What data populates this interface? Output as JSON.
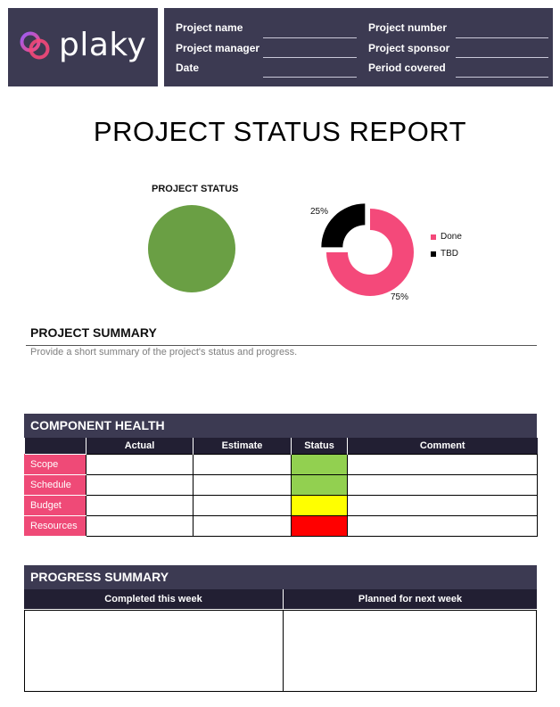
{
  "header": {
    "logo_text": "plaky",
    "fields_left": [
      "Project name",
      "Project manager",
      "Date"
    ],
    "fields_right": [
      "Project number",
      "Project sponsor",
      "Period covered"
    ]
  },
  "title": "PROJECT STATUS REPORT",
  "project_status": {
    "label": "PROJECT STATUS",
    "color": "#6a9f44"
  },
  "chart_data": {
    "type": "pie",
    "variant": "donut",
    "categories": [
      "Done",
      "TBD"
    ],
    "values": [
      75,
      25
    ],
    "value_labels": [
      "75%",
      "25%"
    ],
    "colors": [
      "#f4497a",
      "#000000"
    ],
    "legend_placement": "right",
    "exploded": [
      "TBD"
    ]
  },
  "summary": {
    "title": "PROJECT SUMMARY",
    "placeholder": "Provide a short summary of the project's status and progress."
  },
  "component_health": {
    "title": "COMPONENT HEALTH",
    "columns": [
      "",
      "Actual",
      "Estimate",
      "Status",
      "Comment"
    ],
    "rows": [
      {
        "label": "Scope",
        "status_color": "#92d050"
      },
      {
        "label": "Schedule",
        "status_color": "#92d050"
      },
      {
        "label": "Budget",
        "status_color": "#ffff00"
      },
      {
        "label": "Resources",
        "status_color": "#ff0000"
      }
    ]
  },
  "progress_summary": {
    "title": "PROGRESS SUMMARY",
    "columns": [
      "Completed this week",
      "Planned for next week"
    ]
  }
}
